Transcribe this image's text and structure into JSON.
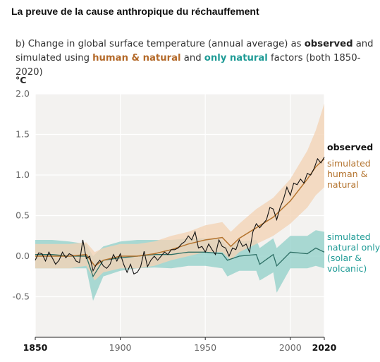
{
  "page_title": "La preuve de la cause anthropique du réchauffement",
  "subtitle": {
    "prefix": "b) Change in global surface temperature (annual average) as ",
    "observed": "observed",
    "and1": " and",
    "line2_prefix": "simulated using ",
    "human_natural": "human & natural",
    "and2": " and ",
    "only_natural": "only natural",
    "line2_suffix": " factors (both 1850-2020)"
  },
  "colors": {
    "observed": "#111111",
    "human_natural_line": "#b4742f",
    "human_natural_band": "#f3d3b6",
    "natural_line": "#2c6e64",
    "natural_band": "#8fcfc8",
    "plot_bg": "#f3f2f0",
    "grid": "#ffffff"
  },
  "chart_data": {
    "type": "line",
    "ylabel": "°C",
    "xlim": [
      1850,
      2020
    ],
    "ylim": [
      -1.0,
      2.0
    ],
    "x_ticks": [
      1850,
      1900,
      1950,
      2000,
      2020
    ],
    "x_tick_labels": [
      "1850",
      "1900",
      "1950",
      "2000",
      "2020"
    ],
    "y_ticks": [
      -0.5,
      0.0,
      0.5,
      1.0,
      1.5,
      2.0
    ],
    "y_tick_labels": [
      "-0.5",
      "0.0",
      "0.5",
      "1.0",
      "1.5",
      "2.0"
    ],
    "grid": true,
    "series": [
      {
        "name": "observed",
        "label_lines": [
          "observed"
        ],
        "x": [
          1850,
          1852,
          1854,
          1856,
          1858,
          1860,
          1862,
          1864,
          1866,
          1868,
          1870,
          1872,
          1874,
          1876,
          1878,
          1880,
          1882,
          1884,
          1886,
          1888,
          1890,
          1892,
          1894,
          1896,
          1898,
          1900,
          1902,
          1904,
          1906,
          1908,
          1910,
          1912,
          1914,
          1916,
          1918,
          1920,
          1922,
          1924,
          1926,
          1928,
          1930,
          1932,
          1934,
          1936,
          1938,
          1940,
          1942,
          1944,
          1946,
          1948,
          1950,
          1952,
          1954,
          1956,
          1958,
          1960,
          1962,
          1964,
          1966,
          1968,
          1970,
          1972,
          1974,
          1976,
          1978,
          1980,
          1982,
          1984,
          1986,
          1988,
          1990,
          1992,
          1994,
          1996,
          1998,
          2000,
          2002,
          2004,
          2006,
          2008,
          2010,
          2012,
          2014,
          2016,
          2018,
          2020
        ],
        "values": [
          -0.05,
          0.04,
          0.03,
          -0.06,
          0.05,
          -0.02,
          -0.1,
          -0.05,
          0.05,
          -0.02,
          0.03,
          0.01,
          -0.06,
          -0.08,
          0.2,
          -0.03,
          0.0,
          -0.18,
          -0.1,
          -0.05,
          -0.12,
          -0.15,
          -0.1,
          0.02,
          -0.06,
          0.03,
          -0.1,
          -0.2,
          -0.1,
          -0.22,
          -0.2,
          -0.13,
          0.06,
          -0.13,
          -0.05,
          0.0,
          -0.05,
          0.0,
          0.05,
          0.02,
          0.08,
          0.08,
          0.1,
          0.15,
          0.18,
          0.25,
          0.2,
          0.3,
          0.1,
          0.12,
          0.05,
          0.15,
          0.08,
          0.02,
          0.2,
          0.12,
          0.1,
          0.0,
          0.1,
          0.08,
          0.2,
          0.12,
          0.15,
          0.05,
          0.3,
          0.4,
          0.35,
          0.4,
          0.45,
          0.6,
          0.58,
          0.45,
          0.6,
          0.7,
          0.85,
          0.75,
          0.9,
          0.88,
          0.95,
          0.9,
          1.02,
          1.0,
          1.08,
          1.2,
          1.15,
          1.22
        ]
      },
      {
        "name": "simulated human & natural",
        "label_lines": [
          "simulated",
          "human &",
          "natural"
        ],
        "x": [
          1850,
          1860,
          1870,
          1880,
          1885,
          1890,
          1900,
          1910,
          1920,
          1930,
          1940,
          1950,
          1960,
          1965,
          1970,
          1980,
          1990,
          2000,
          2010,
          2015,
          2020
        ],
        "values": [
          0.0,
          0.0,
          0.0,
          0.02,
          -0.12,
          -0.05,
          0.0,
          0.0,
          0.03,
          0.08,
          0.15,
          0.2,
          0.23,
          0.12,
          0.22,
          0.35,
          0.48,
          0.68,
          0.95,
          1.1,
          1.2
        ],
        "band_low": [
          -0.15,
          -0.15,
          -0.15,
          -0.12,
          -0.3,
          -0.2,
          -0.15,
          -0.15,
          -0.12,
          -0.05,
          0.0,
          0.05,
          0.05,
          -0.05,
          0.05,
          0.15,
          0.25,
          0.4,
          0.6,
          0.75,
          0.85
        ],
        "band_high": [
          0.15,
          0.15,
          0.15,
          0.17,
          0.05,
          0.1,
          0.15,
          0.15,
          0.18,
          0.25,
          0.3,
          0.38,
          0.42,
          0.3,
          0.4,
          0.58,
          0.72,
          0.95,
          1.3,
          1.55,
          1.88
        ]
      },
      {
        "name": "simulated natural only",
        "label_lines": [
          "simulated",
          "natural only",
          "(solar &",
          "volcanic)"
        ],
        "x": [
          1850,
          1860,
          1870,
          1880,
          1884,
          1890,
          1900,
          1910,
          1920,
          1930,
          1940,
          1950,
          1960,
          1963,
          1970,
          1980,
          1982,
          1990,
          1992,
          2000,
          2010,
          2015,
          2020
        ],
        "values": [
          0.02,
          0.02,
          0.0,
          0.0,
          -0.25,
          -0.05,
          -0.02,
          0.0,
          0.02,
          0.02,
          0.05,
          0.05,
          0.03,
          -0.05,
          0.0,
          0.02,
          -0.1,
          0.02,
          -0.12,
          0.05,
          0.03,
          0.1,
          0.05
        ],
        "band_low": [
          -0.15,
          -0.15,
          -0.15,
          -0.15,
          -0.55,
          -0.25,
          -0.18,
          -0.15,
          -0.14,
          -0.15,
          -0.12,
          -0.12,
          -0.15,
          -0.25,
          -0.18,
          -0.18,
          -0.3,
          -0.2,
          -0.45,
          -0.15,
          -0.15,
          -0.12,
          -0.15
        ],
        "band_high": [
          0.2,
          0.2,
          0.18,
          0.15,
          0.0,
          0.12,
          0.18,
          0.2,
          0.2,
          0.2,
          0.22,
          0.22,
          0.2,
          0.12,
          0.18,
          0.2,
          0.1,
          0.22,
          0.1,
          0.25,
          0.25,
          0.32,
          0.3
        ]
      }
    ]
  }
}
